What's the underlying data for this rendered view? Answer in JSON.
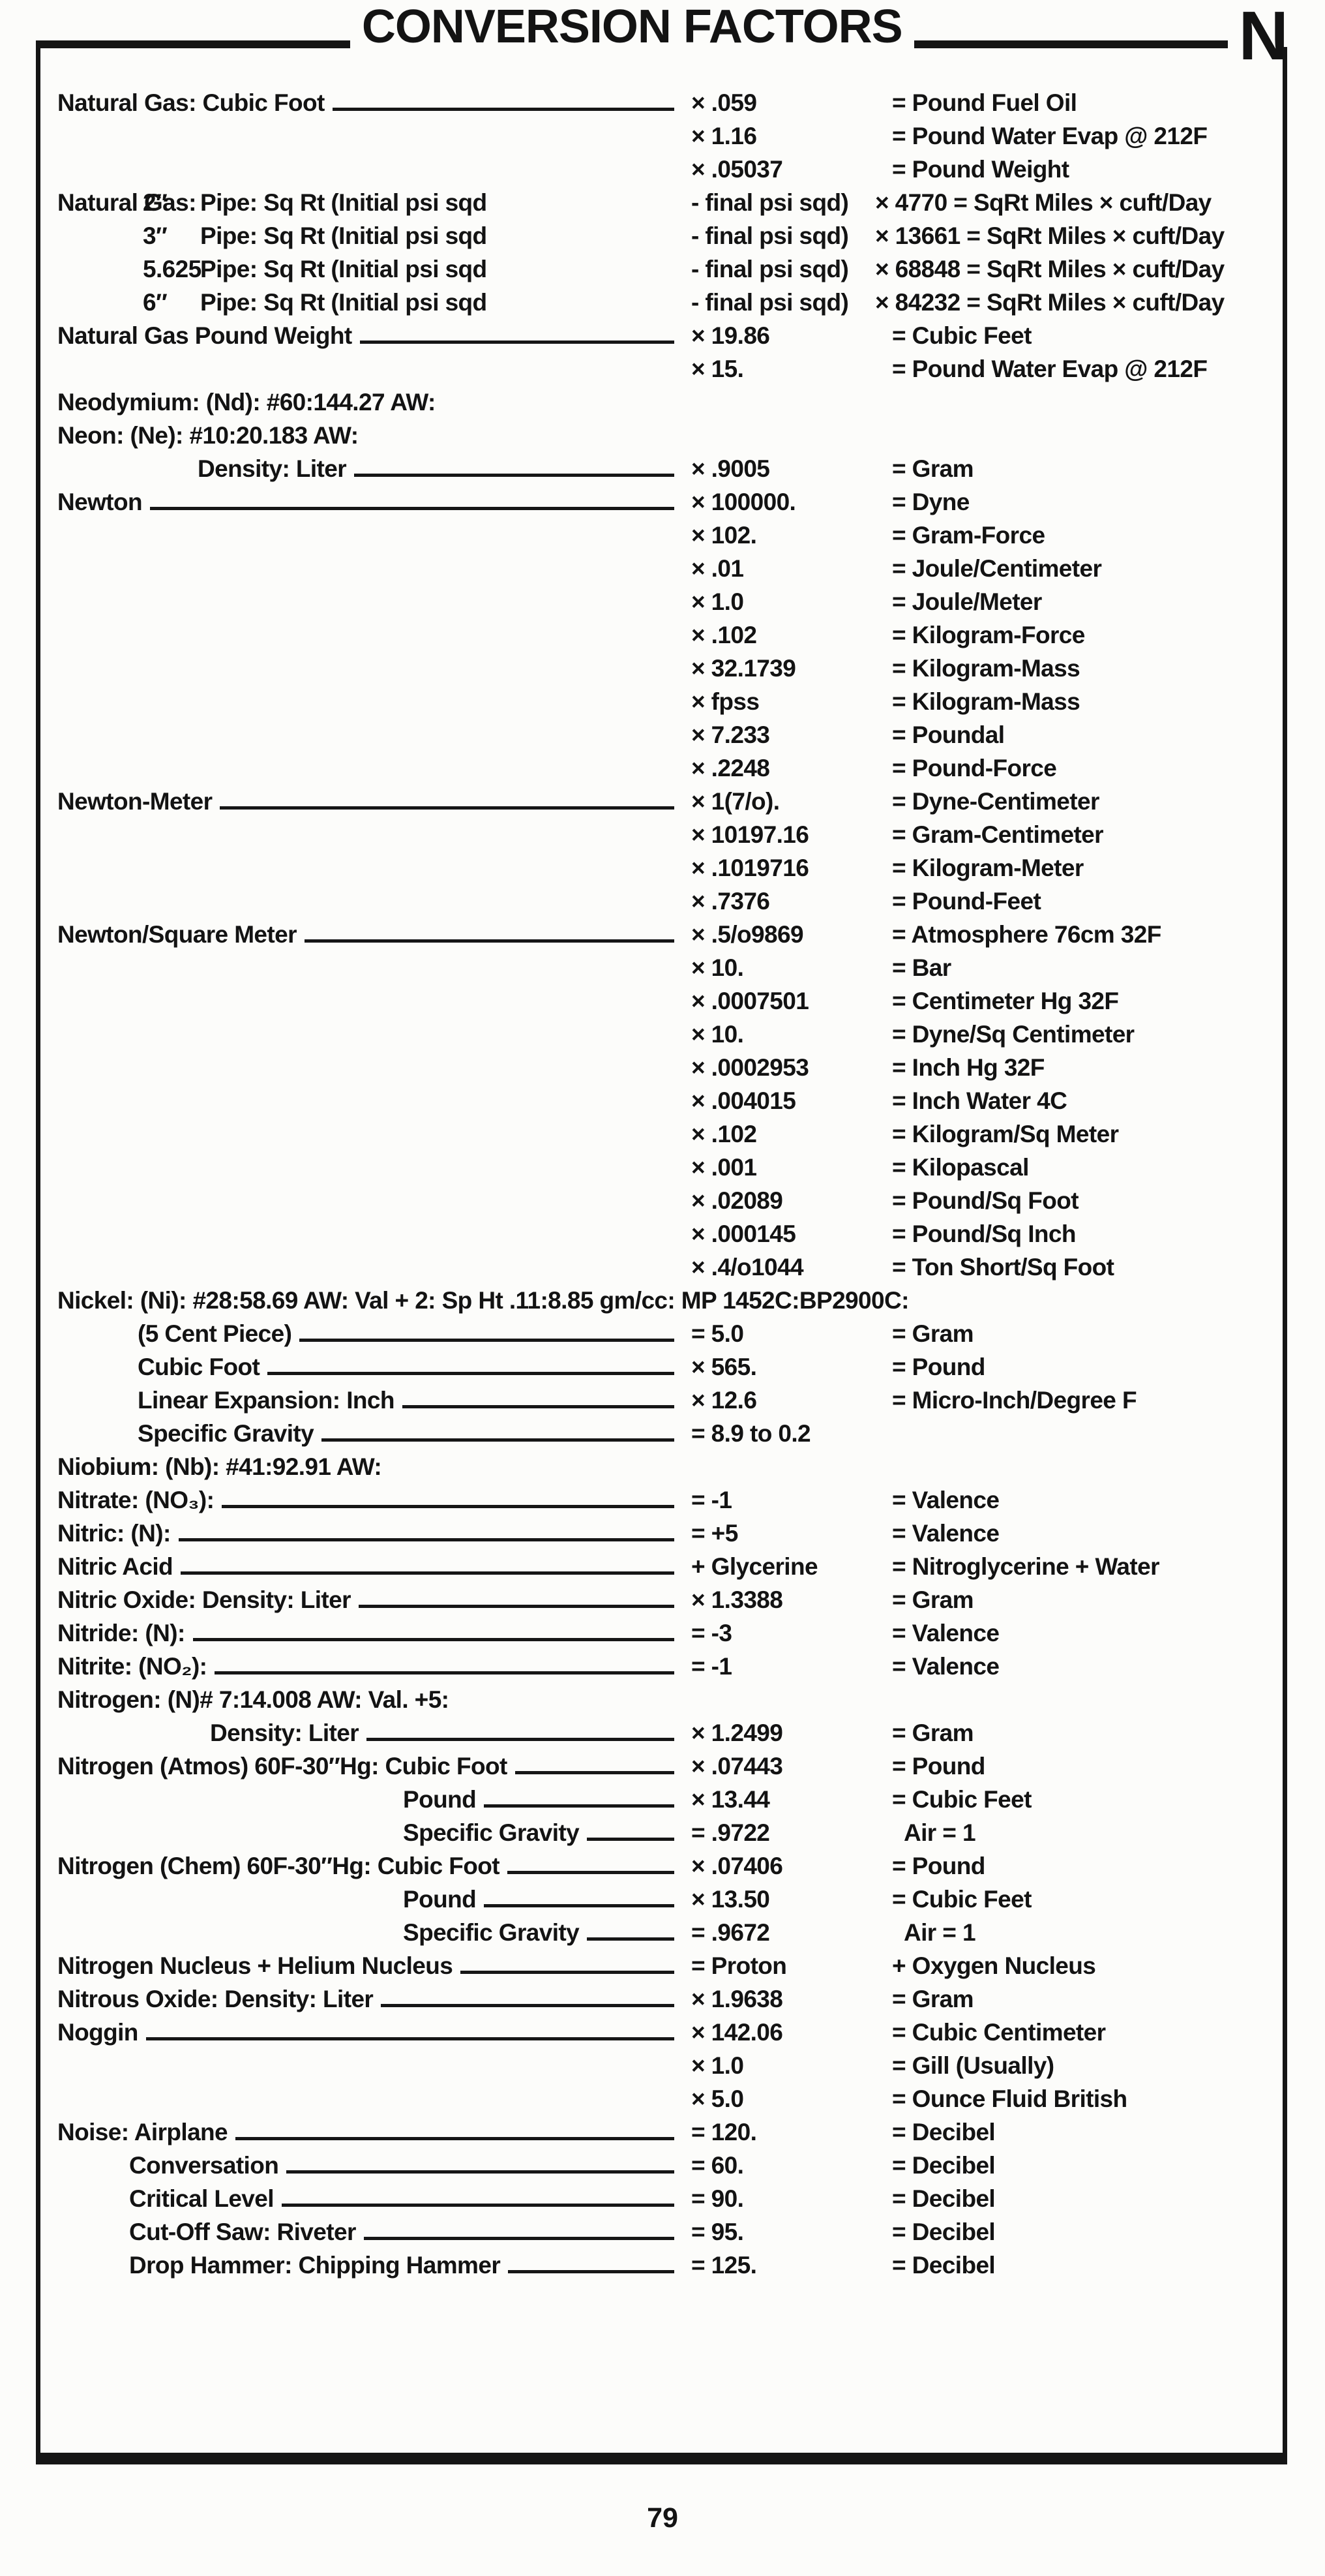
{
  "header": {
    "title": "CONVERSION FACTORS",
    "section_letter": "N"
  },
  "footer": {
    "page_number": "79"
  },
  "rows": [
    {
      "type": "entry",
      "label": "Natural Gas: Cubic Foot",
      "leader": true,
      "factor": "× .059",
      "result": "= Pound Fuel Oil"
    },
    {
      "type": "entry",
      "label": "",
      "factor": "× 1.16",
      "result": "= Pound Water Evap @ 212F"
    },
    {
      "type": "entry",
      "label": "",
      "factor": "× .05037",
      "result": "= Pound Weight"
    },
    {
      "type": "pipe",
      "prefix": "Natural Gas:",
      "size": "2″",
      "label": "Pipe: Sq Rt (Initial psi sqd",
      "factor": "- final psi sqd)",
      "result": "× 4770 = SqRt Miles × cuft/Day"
    },
    {
      "type": "pipe",
      "prefix": "",
      "size": "3″",
      "label": "Pipe: Sq Rt (Initial psi sqd",
      "factor": "- final psi sqd)",
      "result": "× 13661 = SqRt Miles × cuft/Day"
    },
    {
      "type": "pipe",
      "prefix": "",
      "size": "5.625",
      "label": "Pipe: Sq Rt (Initial psi sqd",
      "factor": "- final psi sqd)",
      "result": "× 68848 = SqRt Miles × cuft/Day"
    },
    {
      "type": "pipe",
      "prefix": "",
      "size": "6″",
      "label": "Pipe: Sq Rt (Initial psi sqd",
      "factor": "- final psi sqd)",
      "result": "× 84232 = SqRt Miles × cuft/Day"
    },
    {
      "type": "entry",
      "label": "Natural Gas Pound Weight",
      "leader": true,
      "factor": "× 19.86",
      "result": "= Cubic Feet"
    },
    {
      "type": "entry",
      "label": "",
      "factor": "× 15.",
      "result": "= Pound Water Evap @ 212F"
    },
    {
      "type": "header",
      "label": "Neodymium: (Nd): #60:144.27 AW:"
    },
    {
      "type": "header",
      "label": "Neon: (Ne): #10:20.183 AW:"
    },
    {
      "type": "entry",
      "indent": "neon",
      "label": "Density: Liter",
      "leader": true,
      "factor": "× .9005",
      "result": "= Gram"
    },
    {
      "type": "entry",
      "label": "Newton",
      "leader": true,
      "factor": "× 100000.",
      "result": "= Dyne"
    },
    {
      "type": "entry",
      "label": "",
      "factor": "× 102.",
      "result": "= Gram-Force"
    },
    {
      "type": "entry",
      "label": "",
      "factor": "× .01",
      "result": "= Joule/Centimeter"
    },
    {
      "type": "entry",
      "label": "",
      "factor": "× 1.0",
      "result": "= Joule/Meter"
    },
    {
      "type": "entry",
      "label": "",
      "factor": "× .102",
      "result": "= Kilogram-Force"
    },
    {
      "type": "entry",
      "label": "",
      "factor": "× 32.1739",
      "result": "= Kilogram-Mass"
    },
    {
      "type": "entry",
      "label": "",
      "factor": "× fpss",
      "result": "= Kilogram-Mass"
    },
    {
      "type": "entry",
      "label": "",
      "factor": "× 7.233",
      "result": "= Poundal"
    },
    {
      "type": "entry",
      "label": "",
      "factor": "× .2248",
      "result": "= Pound-Force"
    },
    {
      "type": "entry",
      "label": "Newton-Meter",
      "leader": true,
      "factor": "× 1(7/o).",
      "result": "= Dyne-Centimeter"
    },
    {
      "type": "entry",
      "label": "",
      "factor": "× 10197.16",
      "result": "= Gram-Centimeter"
    },
    {
      "type": "entry",
      "label": "",
      "factor": "× .1019716",
      "result": "= Kilogram-Meter"
    },
    {
      "type": "entry",
      "label": "",
      "factor": "× .7376",
      "result": "= Pound-Feet"
    },
    {
      "type": "entry",
      "label": "Newton/Square Meter",
      "leader": true,
      "factor": "× .5/o9869",
      "result": "= Atmosphere 76cm 32F"
    },
    {
      "type": "entry",
      "label": "",
      "factor": "× 10.",
      "result": "= Bar"
    },
    {
      "type": "entry",
      "label": "",
      "factor": "× .0007501",
      "result": "= Centimeter Hg 32F"
    },
    {
      "type": "entry",
      "label": "",
      "factor": "× 10.",
      "result": "= Dyne/Sq Centimeter"
    },
    {
      "type": "entry",
      "label": "",
      "factor": "× .0002953",
      "result": "= Inch Hg 32F"
    },
    {
      "type": "entry",
      "label": "",
      "factor": "× .004015",
      "result": "= Inch Water 4C"
    },
    {
      "type": "entry",
      "label": "",
      "factor": "× .102",
      "result": "= Kilogram/Sq Meter"
    },
    {
      "type": "entry",
      "label": "",
      "factor": "× .001",
      "result": "= Kilopascal"
    },
    {
      "type": "entry",
      "label": "",
      "factor": "× .02089",
      "result": "= Pound/Sq Foot"
    },
    {
      "type": "entry",
      "label": "",
      "factor": "× .000145",
      "result": "= Pound/Sq Inch"
    },
    {
      "type": "entry",
      "label": "",
      "factor": "× .4/o1044",
      "result": "= Ton Short/Sq Foot"
    },
    {
      "type": "header",
      "label": "Nickel: (Ni): #28:58.69 AW: Val + 2: Sp Ht .11:8.85 gm/cc: MP 1452C:BP2900C:"
    },
    {
      "type": "entry",
      "indent": "nickel",
      "label": "(5 Cent Piece)",
      "leader": true,
      "factor": "= 5.0",
      "result": "= Gram"
    },
    {
      "type": "entry",
      "indent": "nickel",
      "label": "Cubic Foot",
      "leader": true,
      "factor": "× 565.",
      "result": "= Pound"
    },
    {
      "type": "entry",
      "indent": "nickel",
      "label": "Linear Expansion: Inch",
      "leader": true,
      "factor": "× 12.6",
      "result": "= Micro-Inch/Degree F"
    },
    {
      "type": "entry",
      "indent": "nickel",
      "label": "Specific Gravity",
      "leader": true,
      "factor": "= 8.9 to 0.2",
      "result": ""
    },
    {
      "type": "header",
      "label": "Niobium: (Nb): #41:92.91 AW:"
    },
    {
      "type": "entry",
      "label": "Nitrate: (NO₃):",
      "leader": true,
      "factor": "= -1",
      "result": "= Valence"
    },
    {
      "type": "entry",
      "label": "Nitric: (N):",
      "leader": true,
      "factor": "= +5",
      "result": "= Valence"
    },
    {
      "type": "entry",
      "label": "Nitric Acid",
      "leader": true,
      "factor": "+ Glycerine",
      "result": "= Nitroglycerine + Water"
    },
    {
      "type": "entry",
      "label": "Nitric Oxide: Density: Liter",
      "leader": true,
      "factor": "× 1.3388",
      "result": "= Gram"
    },
    {
      "type": "entry",
      "label": "Nitride: (N):",
      "leader": true,
      "factor": "= -3",
      "result": "= Valence"
    },
    {
      "type": "entry",
      "label": "Nitrite: (NO₂):",
      "leader": true,
      "factor": "= -1",
      "result": "= Valence"
    },
    {
      "type": "header",
      "label": "Nitrogen: (N)# 7:14.008 AW: Val. +5:"
    },
    {
      "type": "entry",
      "indent": "nitro",
      "label": "Density: Liter",
      "leader": true,
      "factor": "× 1.2499",
      "result": "= Gram"
    },
    {
      "type": "entry",
      "label": "Nitrogen (Atmos) 60F-30″Hg: Cubic Foot",
      "leader": true,
      "factor": "× .07443",
      "result": "= Pound"
    },
    {
      "type": "entry",
      "indent": "atmos",
      "label": "Pound",
      "leader": true,
      "factor": "× 13.44",
      "result": "= Cubic Feet"
    },
    {
      "type": "entry",
      "indent": "atmos",
      "label": "Specific Gravity",
      "leader": true,
      "factor": "= .9722",
      "result": "Air = 1",
      "air": true
    },
    {
      "type": "entry",
      "label": "Nitrogen (Chem) 60F-30″Hg: Cubic Foot",
      "leader": true,
      "factor": "× .07406",
      "result": "= Pound"
    },
    {
      "type": "entry",
      "indent": "atmos",
      "label": "Pound",
      "leader": true,
      "factor": "× 13.50",
      "result": "= Cubic Feet"
    },
    {
      "type": "entry",
      "indent": "atmos",
      "label": "Specific Gravity",
      "leader": true,
      "factor": "= .9672",
      "result": "Air = 1",
      "air": true
    },
    {
      "type": "entry",
      "label": "Nitrogen Nucleus + Helium Nucleus",
      "leader": true,
      "factor": "= Proton",
      "result": "+ Oxygen Nucleus"
    },
    {
      "type": "entry",
      "label": "Nitrous Oxide: Density: Liter",
      "leader": true,
      "factor": "× 1.9638",
      "result": "= Gram"
    },
    {
      "type": "entry",
      "label": "Noggin",
      "leader": true,
      "factor": "× 142.06",
      "result": "= Cubic Centimeter"
    },
    {
      "type": "entry",
      "label": "",
      "factor": "× 1.0",
      "result": "= Gill (Usually)"
    },
    {
      "type": "entry",
      "label": "",
      "factor": "× 5.0",
      "result": "= Ounce Fluid British"
    },
    {
      "type": "entry",
      "label": "Noise: Airplane",
      "leader": true,
      "factor": "= 120.",
      "result": "= Decibel"
    },
    {
      "type": "entry",
      "indent": "noise",
      "label": "Conversation",
      "leader": true,
      "factor": "= 60.",
      "result": "= Decibel"
    },
    {
      "type": "entry",
      "indent": "noise",
      "label": "Critical Level",
      "leader": true,
      "factor": "= 90.",
      "result": "= Decibel"
    },
    {
      "type": "entry",
      "indent": "noise",
      "label": "Cut-Off Saw: Riveter",
      "leader": true,
      "factor": "= 95.",
      "result": "= Decibel"
    },
    {
      "type": "entry",
      "indent": "noise",
      "label": "Drop Hammer: Chipping Hammer",
      "leader": true,
      "factor": "= 125.",
      "result": "= Decibel"
    }
  ]
}
